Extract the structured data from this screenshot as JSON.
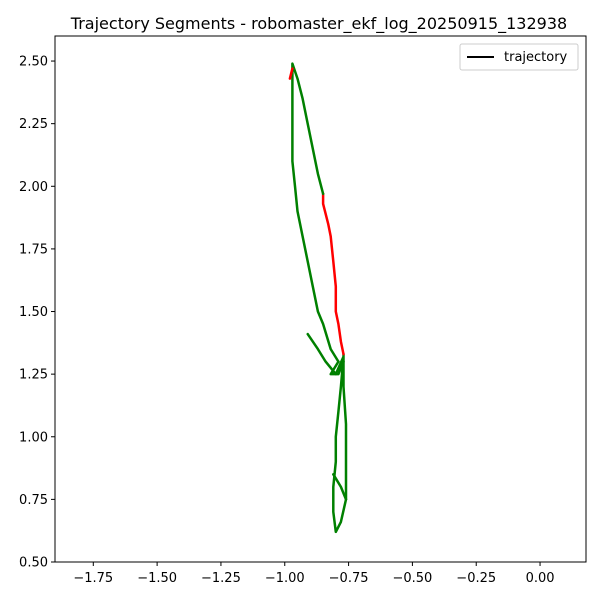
{
  "chart_data": {
    "type": "line",
    "title": "Trajectory Segments - robomaster_ekf_log_20250915_132938",
    "xlabel": "",
    "ylabel": "",
    "xlim": [
      -1.9,
      0.18
    ],
    "ylim": [
      0.5,
      2.6
    ],
    "x_ticks": [
      -1.75,
      -1.5,
      -1.25,
      -1.0,
      -0.75,
      -0.5,
      -0.25,
      0.0
    ],
    "x_tick_labels": [
      "−1.75",
      "−1.50",
      "−1.25",
      "−1.00",
      "−0.75",
      "−0.50",
      "−0.25",
      "0.00"
    ],
    "y_ticks": [
      0.5,
      0.75,
      1.0,
      1.25,
      1.5,
      1.75,
      2.0,
      2.25,
      2.5
    ],
    "y_tick_labels": [
      "0.50",
      "0.75",
      "1.00",
      "1.25",
      "1.50",
      "1.75",
      "2.00",
      "2.25",
      "2.50"
    ],
    "grid": false,
    "legend": {
      "position": "top-right",
      "entries": [
        {
          "label": "trajectory",
          "color": "#000000"
        }
      ]
    },
    "series": [
      {
        "color": "#008000",
        "points": [
          [
            -0.91,
            1.41
          ],
          [
            -0.87,
            1.35
          ],
          [
            -0.84,
            1.3
          ],
          [
            -0.8,
            1.25
          ],
          [
            -0.77,
            1.32
          ],
          [
            -0.78,
            1.2
          ],
          [
            -0.79,
            1.1
          ],
          [
            -0.8,
            1.0
          ],
          [
            -0.8,
            0.9
          ],
          [
            -0.81,
            0.8
          ],
          [
            -0.81,
            0.7
          ],
          [
            -0.8,
            0.62
          ],
          [
            -0.78,
            0.66
          ],
          [
            -0.76,
            0.75
          ],
          [
            -0.76,
            0.9
          ],
          [
            -0.76,
            1.05
          ],
          [
            -0.77,
            1.2
          ],
          [
            -0.77,
            1.33
          ]
        ]
      },
      {
        "color": "#008000",
        "points": [
          [
            -0.77,
            1.3
          ],
          [
            -0.79,
            1.25
          ],
          [
            -0.82,
            1.25
          ],
          [
            -0.79,
            1.3
          ]
        ]
      },
      {
        "color": "#008000",
        "points": [
          [
            -0.81,
            0.85
          ],
          [
            -0.78,
            0.8
          ],
          [
            -0.76,
            0.75
          ]
        ]
      },
      {
        "color": "#ff0000",
        "points": [
          [
            -0.77,
            1.33
          ],
          [
            -0.78,
            1.38
          ],
          [
            -0.79,
            1.45
          ],
          [
            -0.8,
            1.5
          ],
          [
            -0.8,
            1.6
          ],
          [
            -0.81,
            1.7
          ],
          [
            -0.82,
            1.8
          ],
          [
            -0.83,
            1.85
          ],
          [
            -0.85,
            1.93
          ],
          [
            -0.85,
            1.97
          ]
        ]
      },
      {
        "color": "#008000",
        "points": [
          [
            -0.85,
            1.97
          ],
          [
            -0.87,
            2.05
          ],
          [
            -0.89,
            2.15
          ],
          [
            -0.91,
            2.25
          ],
          [
            -0.93,
            2.35
          ],
          [
            -0.95,
            2.43
          ],
          [
            -0.97,
            2.49
          ],
          [
            -0.97,
            2.4
          ],
          [
            -0.97,
            2.25
          ],
          [
            -0.97,
            2.1
          ],
          [
            -0.96,
            2.0
          ],
          [
            -0.95,
            1.9
          ],
          [
            -0.93,
            1.8
          ],
          [
            -0.91,
            1.7
          ],
          [
            -0.89,
            1.6
          ],
          [
            -0.87,
            1.5
          ],
          [
            -0.85,
            1.45
          ],
          [
            -0.82,
            1.35
          ],
          [
            -0.79,
            1.3
          ]
        ]
      },
      {
        "color": "#ff0000",
        "points": [
          [
            -0.98,
            2.43
          ],
          [
            -0.97,
            2.47
          ]
        ]
      }
    ]
  }
}
